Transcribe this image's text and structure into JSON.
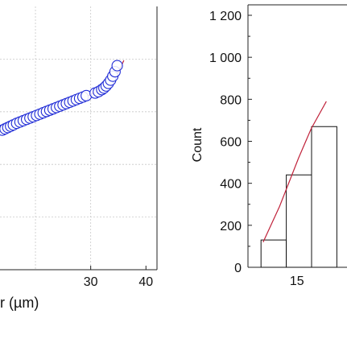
{
  "chart_data": [
    {
      "type": "scatter",
      "title": "",
      "xlabel": "r (µm)",
      "ylabel": "",
      "xlim": [
        13,
        42
      ],
      "ylim": [
        0,
        1
      ],
      "grid": true,
      "x_ticks": [
        30,
        40
      ],
      "x_tick_labels": [
        "30",
        "40"
      ],
      "series": [
        {
          "points": [
            [
              14.0,
              0.53
            ],
            [
              14.5,
              0.535
            ],
            [
              15.0,
              0.54
            ],
            [
              15.5,
              0.545
            ],
            [
              16.0,
              0.55
            ],
            [
              16.6,
              0.556
            ],
            [
              17.2,
              0.561
            ],
            [
              17.8,
              0.566
            ],
            [
              18.4,
              0.571
            ],
            [
              19.0,
              0.576
            ],
            [
              19.6,
              0.581
            ],
            [
              20.2,
              0.586
            ],
            [
              20.8,
              0.591
            ],
            [
              21.4,
              0.596
            ],
            [
              22.0,
              0.601
            ],
            [
              22.6,
              0.606
            ],
            [
              23.2,
              0.611
            ],
            [
              23.8,
              0.616
            ],
            [
              24.4,
              0.621
            ],
            [
              25.0,
              0.626
            ],
            [
              25.6,
              0.631
            ],
            [
              26.2,
              0.636
            ],
            [
              26.8,
              0.641
            ],
            [
              27.4,
              0.646
            ],
            [
              28.0,
              0.651
            ],
            [
              28.6,
              0.656
            ],
            [
              29.2,
              0.661
            ],
            [
              30.8,
              0.671
            ],
            [
              31.4,
              0.676
            ],
            [
              32.0,
              0.684
            ],
            [
              32.4,
              0.69
            ],
            [
              32.8,
              0.698
            ],
            [
              33.2,
              0.708
            ],
            [
              33.6,
              0.72
            ],
            [
              34.0,
              0.735
            ],
            [
              34.4,
              0.752
            ],
            [
              34.8,
              0.775
            ]
          ]
        }
      ],
      "fit_line": [
        [
          14.0,
          0.53
        ],
        [
          30.0,
          0.665
        ],
        [
          33.0,
          0.705
        ],
        [
          35.0,
          0.75
        ],
        [
          36.0,
          0.795
        ]
      ],
      "marker_color": "#1f2bd6",
      "fit_color": "#c0223a"
    },
    {
      "type": "bar",
      "title": "",
      "xlabel": "",
      "ylabel": "Count",
      "ylim": [
        0,
        1200
      ],
      "y_ticks": [
        0,
        200,
        400,
        600,
        800,
        1000,
        1200
      ],
      "y_tick_labels": [
        "0",
        "200",
        "400",
        "600",
        "800",
        "1 000",
        "1 200"
      ],
      "x_ticks": [
        15
      ],
      "x_tick_labels": [
        "15"
      ],
      "bins": [
        {
          "from": 12,
          "to": 14,
          "value": 130
        },
        {
          "from": 14,
          "to": 16,
          "value": 440
        },
        {
          "from": 16,
          "to": 18,
          "value": 670
        }
      ],
      "fit_line": [
        [
          12.2,
          120
        ],
        [
          13.5,
          290
        ],
        [
          15.0,
          520
        ],
        [
          16.0,
          660
        ],
        [
          17.2,
          790
        ]
      ],
      "fit_color": "#c0223a"
    }
  ]
}
